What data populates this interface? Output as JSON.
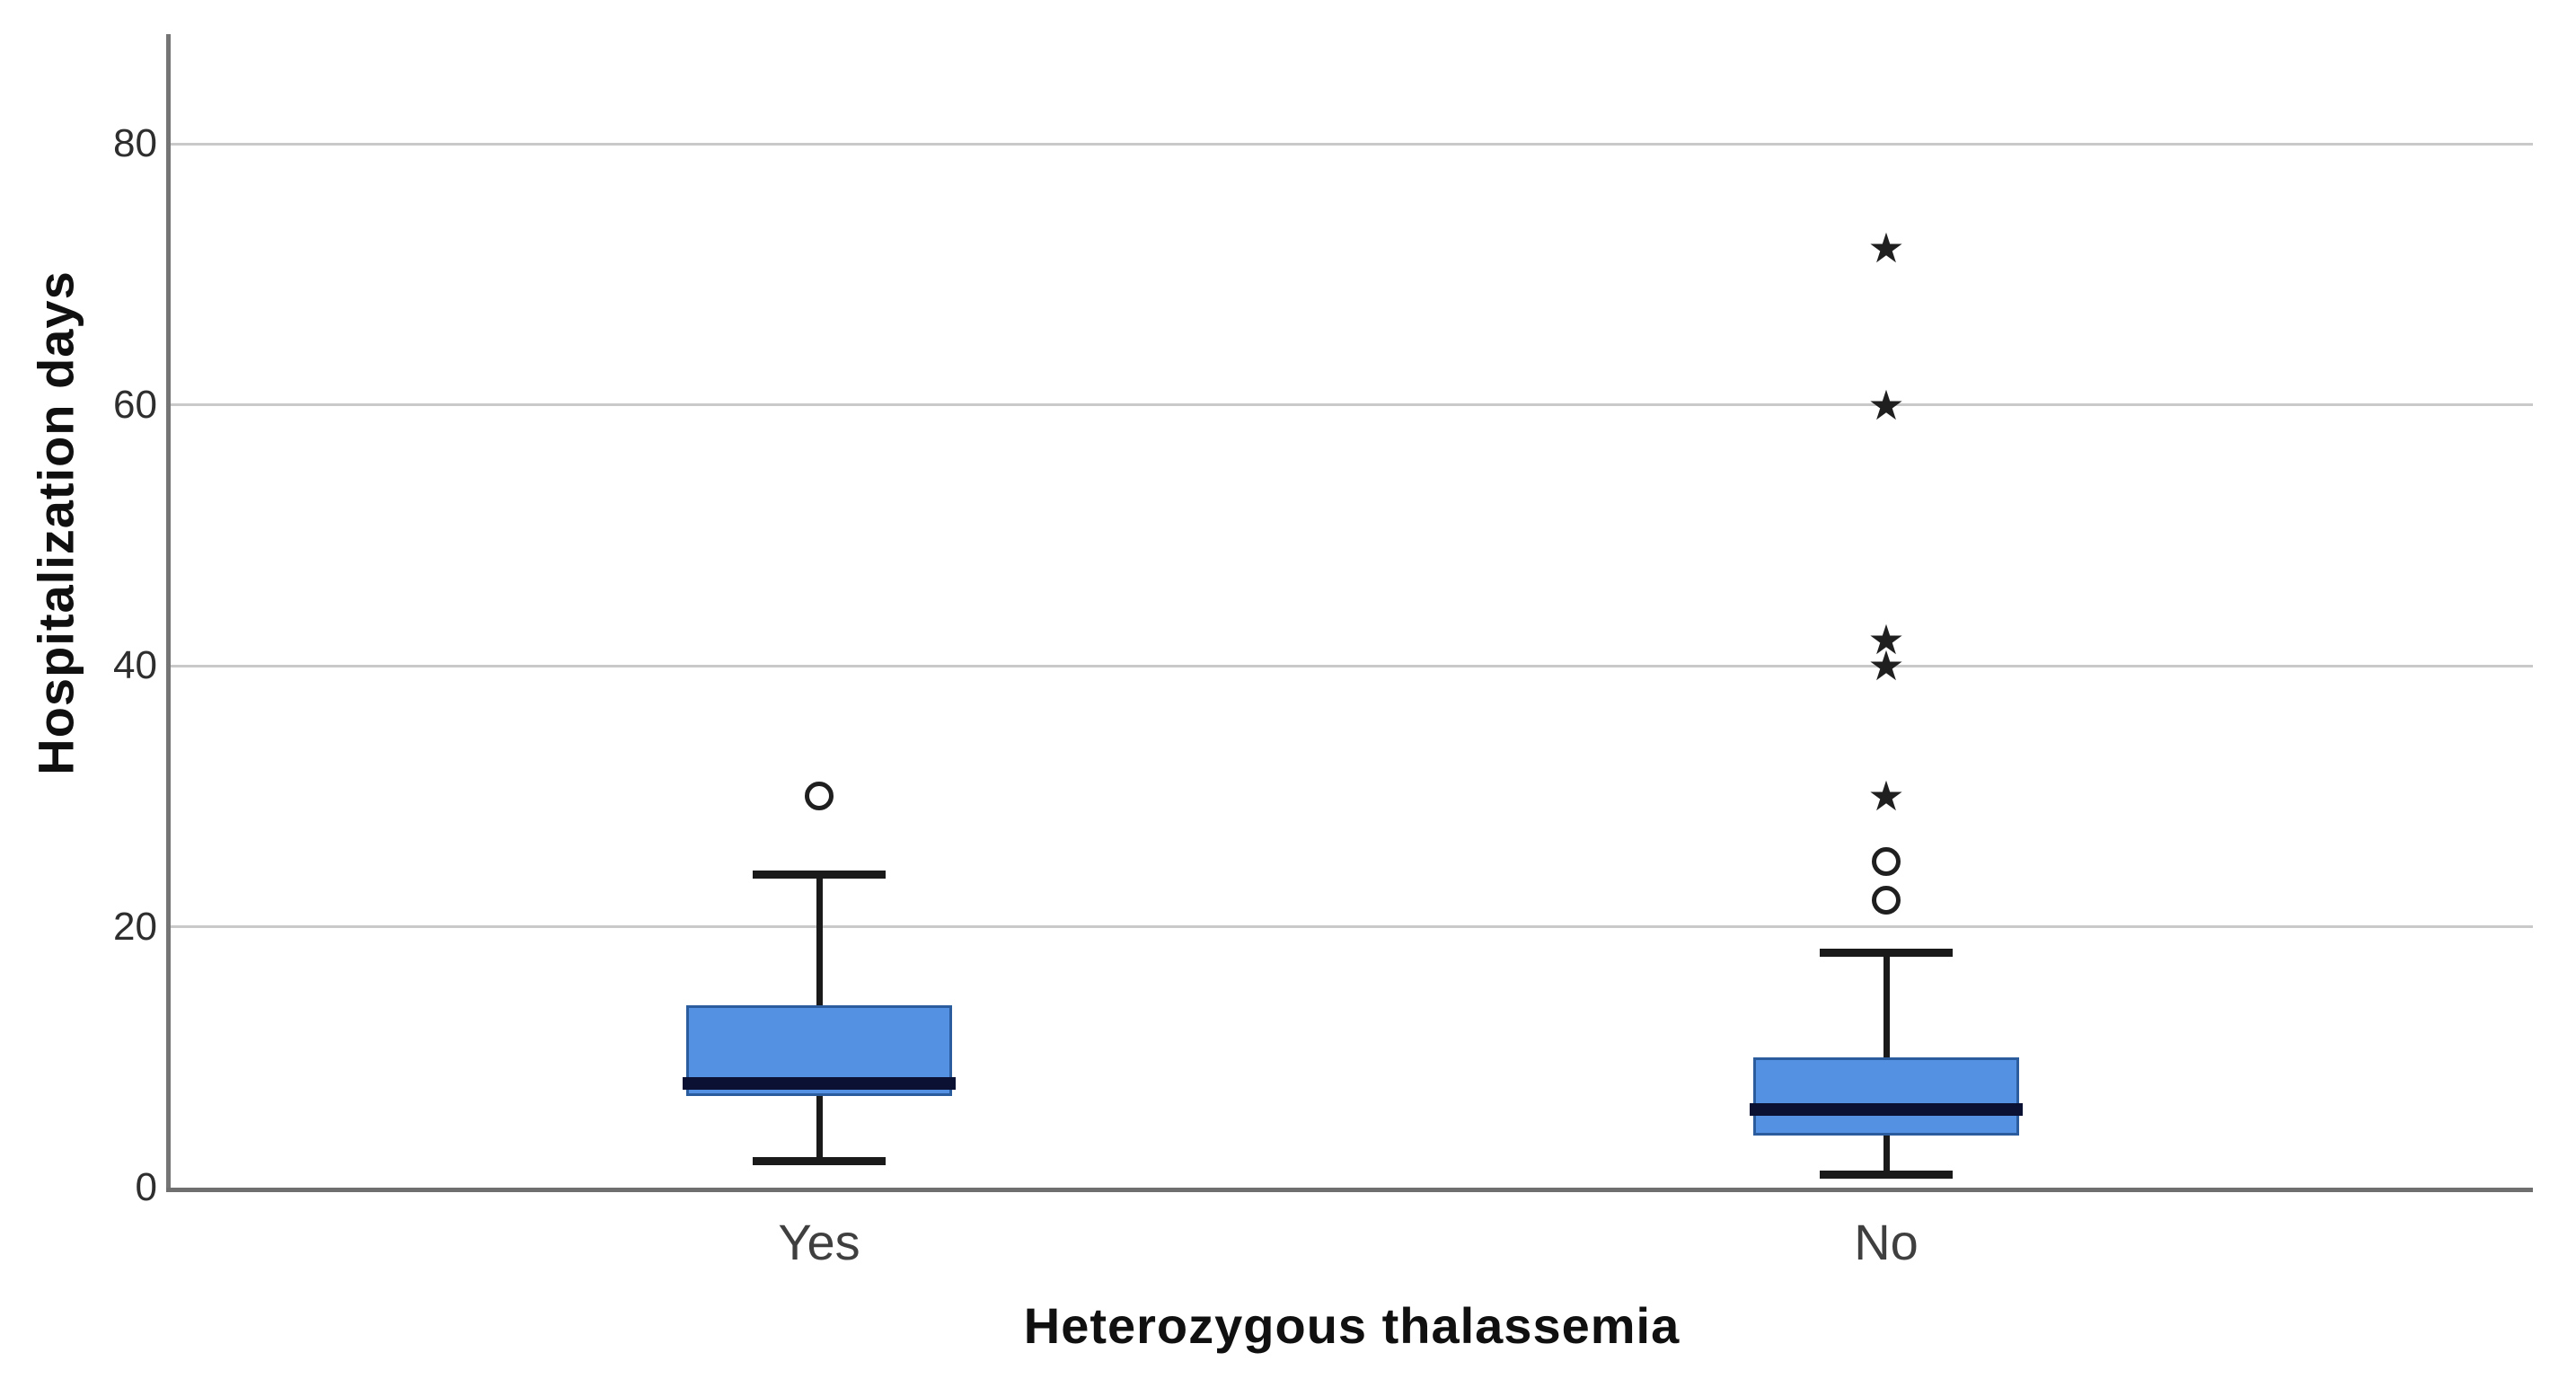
{
  "chart_data": {
    "type": "boxplot",
    "title": "",
    "xlabel": "Heterozygous thalassemia",
    "ylabel": "Hospitalization days",
    "categories": [
      "Yes",
      "No"
    ],
    "ylim": [
      0,
      88.4
    ],
    "yticks": [
      0,
      20,
      40,
      60,
      80
    ],
    "ytick_labels": [
      "0",
      "20",
      "40",
      "60",
      "80"
    ],
    "grid": "horizontal gridlines at each labeled y tick, no vertical gridlines, no legend",
    "series": [
      {
        "category": "Yes",
        "whisker_low": 2,
        "q1": 7,
        "median": 8,
        "q3": 14,
        "whisker_high": 24,
        "outliers_circle": [
          30
        ],
        "outliers_star": []
      },
      {
        "category": "No",
        "whisker_low": 1,
        "q1": 4,
        "median": 6,
        "q3": 10,
        "whisker_high": 18,
        "outliers_circle": [
          22,
          25
        ],
        "outliers_star": [
          30,
          40,
          42,
          60,
          72
        ]
      }
    ],
    "markers": {
      "circle_meaning": "outlier",
      "star_meaning": "extreme outlier",
      "star_glyph": "★"
    },
    "colors": {
      "box_fill": "#5591e2",
      "box_border": "#2b5c9e",
      "median": "#0b1133",
      "whisker": "#1a1a1a",
      "outlier": "#1f1f1f",
      "gridline": "#c9c9c9",
      "axis": "#757575",
      "tick_label": "#2e2e2e",
      "category_label": "#3f3f3f",
      "title": "#101010"
    }
  }
}
